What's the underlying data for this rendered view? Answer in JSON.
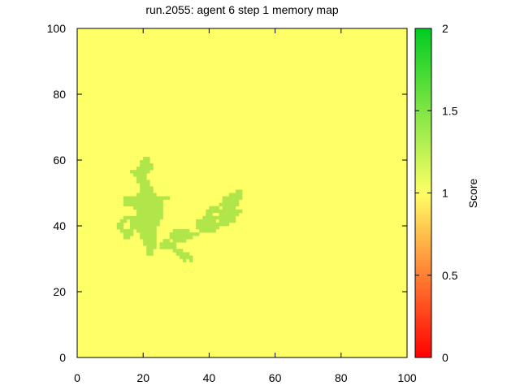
{
  "chart_data": {
    "type": "heatmap",
    "title": "run.2055: agent 6 step 1 memory map",
    "xlabel": "",
    "ylabel": "",
    "xlim": [
      0,
      100
    ],
    "ylim": [
      0,
      100
    ],
    "x_ticks": [
      "0",
      "20",
      "40",
      "60",
      "80",
      "100"
    ],
    "y_ticks": [
      "0",
      "20",
      "40",
      "60",
      "80",
      "100"
    ],
    "grid": false,
    "background_value": 1.0,
    "highlight_value": 1.25,
    "highlight_region_cells": [
      [
        20,
        60
      ],
      [
        21,
        60
      ],
      [
        19,
        59
      ],
      [
        20,
        59
      ],
      [
        21,
        59
      ],
      [
        19,
        58
      ],
      [
        20,
        58
      ],
      [
        21,
        58
      ],
      [
        22,
        58
      ],
      [
        18,
        57
      ],
      [
        19,
        57
      ],
      [
        20,
        57
      ],
      [
        21,
        57
      ],
      [
        22,
        57
      ],
      [
        16,
        56
      ],
      [
        17,
        56
      ],
      [
        18,
        56
      ],
      [
        19,
        56
      ],
      [
        20,
        56
      ],
      [
        21,
        56
      ],
      [
        17,
        55
      ],
      [
        18,
        55
      ],
      [
        19,
        55
      ],
      [
        20,
        55
      ],
      [
        18,
        54
      ],
      [
        19,
        54
      ],
      [
        20,
        54
      ],
      [
        18,
        53
      ],
      [
        19,
        53
      ],
      [
        20,
        53
      ],
      [
        21,
        53
      ],
      [
        19,
        52
      ],
      [
        20,
        52
      ],
      [
        21,
        52
      ],
      [
        19,
        51
      ],
      [
        20,
        51
      ],
      [
        21,
        51
      ],
      [
        22,
        51
      ],
      [
        19,
        50
      ],
      [
        20,
        50
      ],
      [
        21,
        50
      ],
      [
        22,
        50
      ],
      [
        18,
        49
      ],
      [
        19,
        49
      ],
      [
        20,
        49
      ],
      [
        21,
        49
      ],
      [
        22,
        49
      ],
      [
        23,
        49
      ],
      [
        14,
        48
      ],
      [
        15,
        48
      ],
      [
        16,
        48
      ],
      [
        17,
        48
      ],
      [
        18,
        48
      ],
      [
        19,
        48
      ],
      [
        20,
        48
      ],
      [
        21,
        48
      ],
      [
        22,
        48
      ],
      [
        23,
        48
      ],
      [
        24,
        48
      ],
      [
        25,
        48
      ],
      [
        26,
        48
      ],
      [
        27,
        48
      ],
      [
        14,
        47
      ],
      [
        15,
        47
      ],
      [
        16,
        47
      ],
      [
        17,
        47
      ],
      [
        18,
        47
      ],
      [
        19,
        47
      ],
      [
        20,
        47
      ],
      [
        21,
        47
      ],
      [
        22,
        47
      ],
      [
        23,
        47
      ],
      [
        24,
        47
      ],
      [
        25,
        47
      ],
      [
        14,
        46
      ],
      [
        15,
        46
      ],
      [
        16,
        46
      ],
      [
        17,
        46
      ],
      [
        18,
        46
      ],
      [
        19,
        46
      ],
      [
        20,
        46
      ],
      [
        21,
        46
      ],
      [
        22,
        46
      ],
      [
        23,
        46
      ],
      [
        24,
        46
      ],
      [
        25,
        46
      ],
      [
        17,
        45
      ],
      [
        18,
        45
      ],
      [
        19,
        45
      ],
      [
        20,
        45
      ],
      [
        21,
        45
      ],
      [
        22,
        45
      ],
      [
        23,
        45
      ],
      [
        24,
        45
      ],
      [
        25,
        45
      ],
      [
        18,
        44
      ],
      [
        19,
        44
      ],
      [
        20,
        44
      ],
      [
        21,
        44
      ],
      [
        22,
        44
      ],
      [
        23,
        44
      ],
      [
        24,
        44
      ],
      [
        25,
        44
      ],
      [
        18,
        43
      ],
      [
        19,
        43
      ],
      [
        20,
        43
      ],
      [
        21,
        43
      ],
      [
        22,
        43
      ],
      [
        23,
        43
      ],
      [
        24,
        43
      ],
      [
        25,
        43
      ],
      [
        14,
        42
      ],
      [
        15,
        42
      ],
      [
        16,
        42
      ],
      [
        17,
        42
      ],
      [
        18,
        42
      ],
      [
        19,
        42
      ],
      [
        20,
        42
      ],
      [
        21,
        42
      ],
      [
        22,
        42
      ],
      [
        23,
        42
      ],
      [
        24,
        42
      ],
      [
        25,
        42
      ],
      [
        13,
        41
      ],
      [
        14,
        41
      ],
      [
        16,
        41
      ],
      [
        17,
        41
      ],
      [
        18,
        41
      ],
      [
        19,
        41
      ],
      [
        20,
        41
      ],
      [
        21,
        41
      ],
      [
        22,
        41
      ],
      [
        23,
        41
      ],
      [
        24,
        41
      ],
      [
        12,
        40
      ],
      [
        13,
        40
      ],
      [
        16,
        40
      ],
      [
        17,
        40
      ],
      [
        18,
        40
      ],
      [
        19,
        40
      ],
      [
        20,
        40
      ],
      [
        21,
        40
      ],
      [
        22,
        40
      ],
      [
        23,
        40
      ],
      [
        24,
        40
      ],
      [
        12,
        39
      ],
      [
        13,
        39
      ],
      [
        16,
        39
      ],
      [
        17,
        39
      ],
      [
        18,
        39
      ],
      [
        19,
        39
      ],
      [
        20,
        39
      ],
      [
        21,
        39
      ],
      [
        22,
        39
      ],
      [
        23,
        39
      ],
      [
        13,
        38
      ],
      [
        14,
        38
      ],
      [
        15,
        38
      ],
      [
        16,
        38
      ],
      [
        18,
        38
      ],
      [
        19,
        38
      ],
      [
        20,
        38
      ],
      [
        21,
        38
      ],
      [
        22,
        38
      ],
      [
        23,
        38
      ],
      [
        14,
        37
      ],
      [
        15,
        37
      ],
      [
        16,
        37
      ],
      [
        19,
        37
      ],
      [
        20,
        37
      ],
      [
        21,
        37
      ],
      [
        22,
        37
      ],
      [
        23,
        37
      ],
      [
        14,
        36
      ],
      [
        15,
        36
      ],
      [
        19,
        36
      ],
      [
        20,
        36
      ],
      [
        21,
        36
      ],
      [
        22,
        36
      ],
      [
        23,
        36
      ],
      [
        20,
        35
      ],
      [
        21,
        35
      ],
      [
        22,
        35
      ],
      [
        23,
        35
      ],
      [
        26,
        35
      ],
      [
        27,
        35
      ],
      [
        20,
        34
      ],
      [
        21,
        34
      ],
      [
        22,
        34
      ],
      [
        23,
        34
      ],
      [
        25,
        34
      ],
      [
        26,
        34
      ],
      [
        27,
        34
      ],
      [
        28,
        34
      ],
      [
        21,
        33
      ],
      [
        22,
        33
      ],
      [
        23,
        33
      ],
      [
        25,
        33
      ],
      [
        26,
        33
      ],
      [
        27,
        33
      ],
      [
        28,
        33
      ],
      [
        29,
        33
      ],
      [
        21,
        32
      ],
      [
        22,
        32
      ],
      [
        29,
        32
      ],
      [
        30,
        32
      ],
      [
        31,
        32
      ],
      [
        21,
        31
      ],
      [
        22,
        31
      ],
      [
        30,
        31
      ],
      [
        31,
        31
      ],
      [
        32,
        31
      ],
      [
        33,
        31
      ],
      [
        31,
        30
      ],
      [
        32,
        30
      ],
      [
        33,
        30
      ],
      [
        34,
        30
      ],
      [
        32,
        29
      ],
      [
        34,
        29
      ],
      [
        48,
        50
      ],
      [
        49,
        50
      ],
      [
        46,
        49
      ],
      [
        47,
        49
      ],
      [
        48,
        49
      ],
      [
        49,
        49
      ],
      [
        44,
        48
      ],
      [
        45,
        48
      ],
      [
        46,
        48
      ],
      [
        47,
        48
      ],
      [
        48,
        48
      ],
      [
        49,
        48
      ],
      [
        44,
        47
      ],
      [
        45,
        47
      ],
      [
        46,
        47
      ],
      [
        47,
        47
      ],
      [
        48,
        47
      ],
      [
        43,
        46
      ],
      [
        44,
        46
      ],
      [
        45,
        46
      ],
      [
        46,
        46
      ],
      [
        47,
        46
      ],
      [
        48,
        46
      ],
      [
        40,
        45
      ],
      [
        41,
        45
      ],
      [
        42,
        45
      ],
      [
        44,
        45
      ],
      [
        45,
        45
      ],
      [
        46,
        45
      ],
      [
        47,
        45
      ],
      [
        39,
        44
      ],
      [
        40,
        44
      ],
      [
        41,
        44
      ],
      [
        42,
        44
      ],
      [
        43,
        44
      ],
      [
        44,
        44
      ],
      [
        45,
        44
      ],
      [
        46,
        44
      ],
      [
        47,
        44
      ],
      [
        48,
        44
      ],
      [
        49,
        44
      ],
      [
        39,
        43
      ],
      [
        40,
        43
      ],
      [
        43,
        43
      ],
      [
        44,
        43
      ],
      [
        45,
        43
      ],
      [
        46,
        43
      ],
      [
        47,
        43
      ],
      [
        48,
        43
      ],
      [
        38,
        42
      ],
      [
        39,
        42
      ],
      [
        40,
        42
      ],
      [
        41,
        42
      ],
      [
        42,
        42
      ],
      [
        43,
        42
      ],
      [
        44,
        42
      ],
      [
        45,
        42
      ],
      [
        46,
        42
      ],
      [
        47,
        42
      ],
      [
        36,
        41
      ],
      [
        37,
        41
      ],
      [
        38,
        41
      ],
      [
        39,
        41
      ],
      [
        40,
        41
      ],
      [
        41,
        41
      ],
      [
        43,
        41
      ],
      [
        44,
        41
      ],
      [
        45,
        41
      ],
      [
        46,
        41
      ],
      [
        47,
        41
      ],
      [
        36,
        40
      ],
      [
        37,
        40
      ],
      [
        38,
        40
      ],
      [
        39,
        40
      ],
      [
        40,
        40
      ],
      [
        41,
        40
      ],
      [
        42,
        40
      ],
      [
        43,
        40
      ],
      [
        44,
        40
      ],
      [
        45,
        40
      ],
      [
        36,
        39
      ],
      [
        37,
        39
      ],
      [
        38,
        39
      ],
      [
        39,
        39
      ],
      [
        40,
        39
      ],
      [
        41,
        39
      ],
      [
        42,
        39
      ],
      [
        37,
        38
      ],
      [
        38,
        38
      ],
      [
        39,
        38
      ],
      [
        40,
        38
      ],
      [
        41,
        38
      ],
      [
        29,
        38
      ],
      [
        30,
        38
      ],
      [
        31,
        38
      ],
      [
        32,
        38
      ],
      [
        33,
        38
      ],
      [
        28,
        37
      ],
      [
        29,
        37
      ],
      [
        30,
        37
      ],
      [
        31,
        37
      ],
      [
        32,
        37
      ],
      [
        33,
        37
      ],
      [
        34,
        37
      ],
      [
        35,
        37
      ],
      [
        36,
        37
      ],
      [
        28,
        36
      ],
      [
        29,
        36
      ],
      [
        30,
        36
      ],
      [
        31,
        36
      ],
      [
        32,
        36
      ],
      [
        33,
        36
      ],
      [
        34,
        36
      ],
      [
        29,
        35
      ],
      [
        30,
        35
      ],
      [
        31,
        35
      ],
      [
        32,
        35
      ],
      [
        29,
        34
      ]
    ],
    "colorbar": {
      "label": "Score",
      "min": 0,
      "max": 2,
      "ticks": [
        "0",
        "0.5",
        "1",
        "1.5",
        "2"
      ],
      "colors": [
        "#ff0000",
        "#ffff66",
        "#00cc22"
      ]
    },
    "cell_colors": {
      "background": "#ffff66",
      "highlight": "#b0e64a"
    }
  }
}
